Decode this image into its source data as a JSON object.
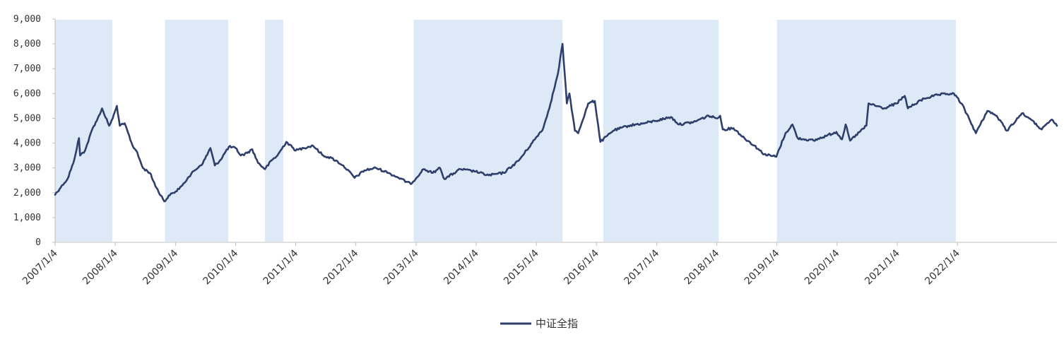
{
  "chart_data": {
    "type": "line",
    "title": "",
    "xlabel": "",
    "ylabel": "",
    "ylim": [
      0,
      9000
    ],
    "yticks": [
      0,
      1000,
      2000,
      3000,
      4000,
      5000,
      6000,
      7000,
      8000,
      9000
    ],
    "ytick_labels": [
      "0",
      "1,000",
      "2,000",
      "3,000",
      "4,000",
      "5,000",
      "6,000",
      "7,000",
      "8,000",
      "9,000"
    ],
    "xlim": [
      "2007/1/4",
      "2023/8/31"
    ],
    "xtick_labels": [
      "2007/1/4",
      "2008/1/4",
      "2009/1/4",
      "2010/1/4",
      "2011/1/4",
      "2012/1/4",
      "2013/1/4",
      "2014/1/4",
      "2015/1/4",
      "2016/1/4",
      "2017/1/4",
      "2018/1/4",
      "2019/1/4",
      "2020/1/4",
      "2021/1/4",
      "2022/1/4"
    ],
    "grid": false,
    "legend": "bottom-center",
    "shaded_periods": [
      {
        "start": "2007/1/4",
        "end": "2007/12/18"
      },
      {
        "start": "2008/11/1",
        "end": "2009/11/20"
      },
      {
        "start": "2010/7/1",
        "end": "2010/10/20"
      },
      {
        "start": "2012/12/20",
        "end": "2015/6/12"
      },
      {
        "start": "2016/2/15",
        "end": "2018/1/15"
      },
      {
        "start": "2019/1/4",
        "end": "2021/12/25"
      }
    ],
    "shade_color": "#dde9f6",
    "series": [
      {
        "name": "中证全指",
        "color": "#2e3f6b",
        "points": [
          [
            "2007/1/4",
            1920
          ],
          [
            "2007/2/15",
            2300
          ],
          [
            "2007/3/20",
            2550
          ],
          [
            "2007/4/25",
            3200
          ],
          [
            "2007/5/29",
            4200
          ],
          [
            "2007/6/5",
            3500
          ],
          [
            "2007/7/5",
            3700
          ],
          [
            "2007/8/20",
            4600
          ],
          [
            "2007/9/20",
            5000
          ],
          [
            "2007/10/16",
            5400
          ],
          [
            "2007/11/28",
            4700
          ],
          [
            "2007/12/20",
            5000
          ],
          [
            "2008/1/14",
            5500
          ],
          [
            "2008/2/1",
            4700
          ],
          [
            "2008/3/1",
            4800
          ],
          [
            "2008/4/18",
            3900
          ],
          [
            "2008/5/10",
            3700
          ],
          [
            "2008/6/20",
            3000
          ],
          [
            "2008/8/1",
            2800
          ],
          [
            "2008/9/10",
            2200
          ],
          [
            "2008/10/28",
            1650
          ],
          [
            "2008/12/1",
            1900
          ],
          [
            "2009/1/5",
            2050
          ],
          [
            "2009/2/15",
            2300
          ],
          [
            "2009/3/20",
            2600
          ],
          [
            "2009/5/1",
            2900
          ],
          [
            "2009/6/20",
            3200
          ],
          [
            "2009/8/4",
            3800
          ],
          [
            "2009/8/31",
            3100
          ],
          [
            "2009/10/1",
            3300
          ],
          [
            "2009/11/24",
            3850
          ],
          [
            "2010/1/4",
            3800
          ],
          [
            "2010/2/5",
            3500
          ],
          [
            "2010/3/15",
            3600
          ],
          [
            "2010/4/15",
            3750
          ],
          [
            "2010/5/20",
            3200
          ],
          [
            "2010/7/2",
            2950
          ],
          [
            "2010/8/10",
            3300
          ],
          [
            "2010/9/15",
            3500
          ],
          [
            "2010/11/8",
            4050
          ],
          [
            "2011/1/4",
            3700
          ],
          [
            "2011/2/20",
            3800
          ],
          [
            "2011/4/18",
            3900
          ],
          [
            "2011/6/20",
            3500
          ],
          [
            "2011/8/10",
            3400
          ],
          [
            "2011/10/20",
            3100
          ],
          [
            "2011/12/28",
            2600
          ],
          [
            "2012/2/25",
            2900
          ],
          [
            "2012/5/5",
            3000
          ],
          [
            "2012/7/20",
            2800
          ],
          [
            "2012/9/20",
            2600
          ],
          [
            "2012/12/3",
            2350
          ],
          [
            "2013/2/18",
            2950
          ],
          [
            "2013/4/15",
            2800
          ],
          [
            "2013/5/29",
            3000
          ],
          [
            "2013/6/25",
            2550
          ],
          [
            "2013/9/30",
            2950
          ],
          [
            "2013/12/31",
            2850
          ],
          [
            "2014/3/20",
            2700
          ],
          [
            "2014/6/20",
            2800
          ],
          [
            "2014/9/20",
            3300
          ],
          [
            "2014/12/31",
            4200
          ],
          [
            "2015/2/15",
            4600
          ],
          [
            "2015/3/31",
            5600
          ],
          [
            "2015/5/15",
            6800
          ],
          [
            "2015/6/12",
            8000
          ],
          [
            "2015/7/8",
            5600
          ],
          [
            "2015/7/24",
            6000
          ],
          [
            "2015/8/26",
            4500
          ],
          [
            "2015/9/15",
            4400
          ],
          [
            "2015/11/15",
            5600
          ],
          [
            "2015/12/25",
            5700
          ],
          [
            "2016/1/28",
            4050
          ],
          [
            "2016/4/15",
            4500
          ],
          [
            "2016/7/15",
            4700
          ],
          [
            "2016/10/15",
            4800
          ],
          [
            "2016/12/31",
            4900
          ],
          [
            "2017/3/31",
            5050
          ],
          [
            "2017/5/20",
            4750
          ],
          [
            "2017/8/15",
            4850
          ],
          [
            "2017/11/15",
            5100
          ],
          [
            "2017/12/31",
            5000
          ],
          [
            "2018/1/24",
            5100
          ],
          [
            "2018/2/9",
            4550
          ],
          [
            "2018/4/15",
            4600
          ],
          [
            "2018/6/20",
            4200
          ],
          [
            "2018/8/20",
            3900
          ],
          [
            "2018/10/18",
            3550
          ],
          [
            "2018/12/31",
            3450
          ],
          [
            "2019/2/25",
            4400
          ],
          [
            "2019/4/8",
            4750
          ],
          [
            "2019/5/10",
            4200
          ],
          [
            "2019/8/15",
            4100
          ],
          [
            "2019/12/31",
            4450
          ],
          [
            "2020/2/3",
            4150
          ],
          [
            "2020/2/25",
            4750
          ],
          [
            "2020/3/23",
            4100
          ],
          [
            "2020/6/30",
            4700
          ],
          [
            "2020/7/13",
            5600
          ],
          [
            "2020/10/15",
            5400
          ],
          [
            "2020/12/31",
            5600
          ],
          [
            "2021/2/18",
            5900
          ],
          [
            "2021/3/9",
            5400
          ],
          [
            "2021/6/15",
            5800
          ],
          [
            "2021/9/14",
            5950
          ],
          [
            "2021/12/13",
            6000
          ],
          [
            "2022/1/28",
            5600
          ],
          [
            "2022/3/15",
            5000
          ],
          [
            "2022/4/26",
            4400
          ],
          [
            "2022/7/5",
            5300
          ],
          [
            "2022/8/30",
            5100
          ],
          [
            "2022/10/31",
            4500
          ],
          [
            "2023/1/30",
            5200
          ],
          [
            "2023/3/15",
            5000
          ],
          [
            "2023/5/31",
            4550
          ],
          [
            "2023/7/31",
            4950
          ],
          [
            "2023/8/31",
            4700
          ]
        ]
      }
    ]
  }
}
